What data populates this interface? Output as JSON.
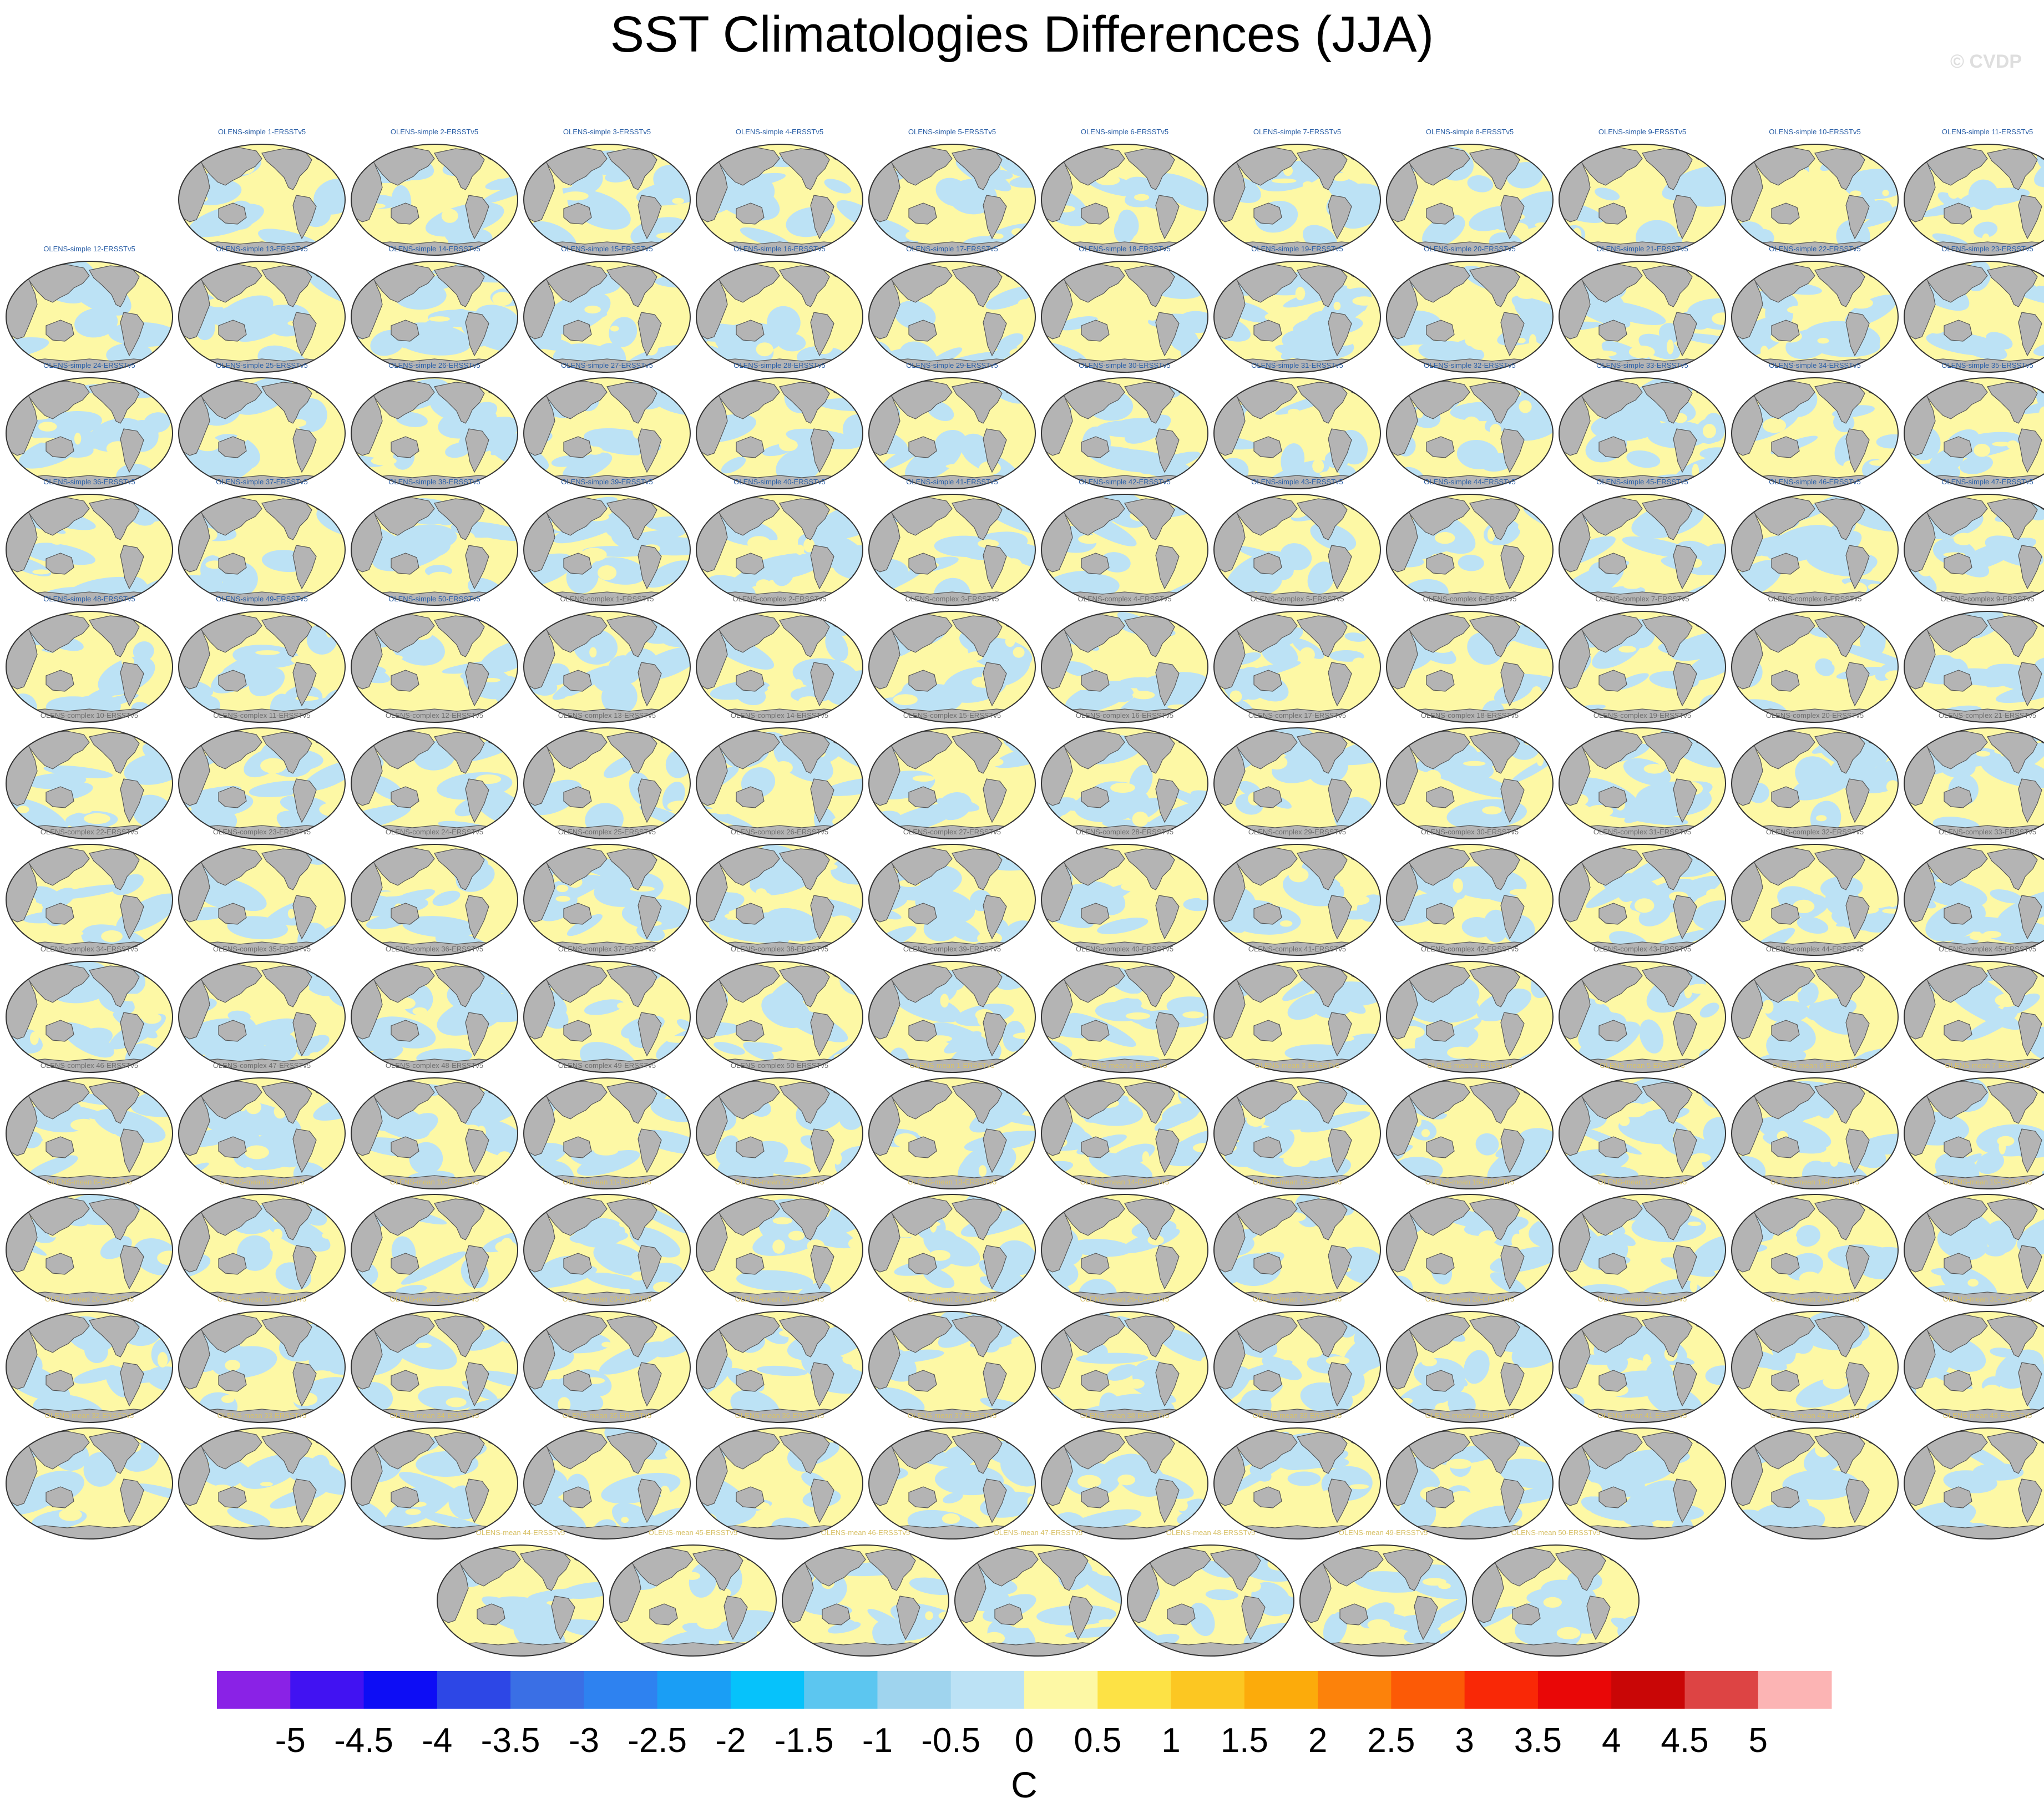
{
  "title": "SST Climatologies Differences (JJA)",
  "watermark": "© CVDP",
  "chart_data": {
    "type": "heatmap",
    "title": "SST Climatologies Differences (JJA)",
    "projection": "Robinson-style global map panels, Pacific-centered",
    "panel_groups": [
      {
        "prefix": "OLENS-simple",
        "suffix": "ERSSTv5",
        "count": 50,
        "title_color": "#2b5fa6"
      },
      {
        "prefix": "OLENS-complex",
        "suffix": "ERSSTv5",
        "count": 50,
        "title_color": "#6e6e6e"
      },
      {
        "prefix": "OLENS-mean",
        "suffix": "ERSSTv5",
        "count": 50,
        "title_color": "#d8c26a"
      }
    ],
    "panel_layout": {
      "columns": 12,
      "first_row_offset": 1,
      "last_row_count": 7,
      "last_row_start_column": 2.5
    },
    "dominant_values": {
      "negative": "-0.5 to 0",
      "positive": "0 to 0.5"
    },
    "land_color": "#b4b4b4",
    "colorbar": {
      "ticks": [
        "-5",
        "-4.5",
        "-4",
        "-3.5",
        "-3",
        "-2.5",
        "-2",
        "-1.5",
        "-1",
        "-0.5",
        "0",
        "0.5",
        "1",
        "1.5",
        "2",
        "2.5",
        "3",
        "3.5",
        "4",
        "4.5",
        "5"
      ],
      "colors": [
        "#8a22e6",
        "#4112f2",
        "#0d0df5",
        "#2d47e6",
        "#3a6fe5",
        "#2e82f0",
        "#1a9ef5",
        "#06c2fb",
        "#5cc6f0",
        "#9fd4ee",
        "#bce2f5",
        "#fdf8a5",
        "#fde245",
        "#fcc722",
        "#fcab0b",
        "#fc820b",
        "#fc5a06",
        "#f92806",
        "#e90707",
        "#c90606",
        "#dd4444",
        "#fcb4b4"
      ],
      "unit": "C"
    }
  }
}
